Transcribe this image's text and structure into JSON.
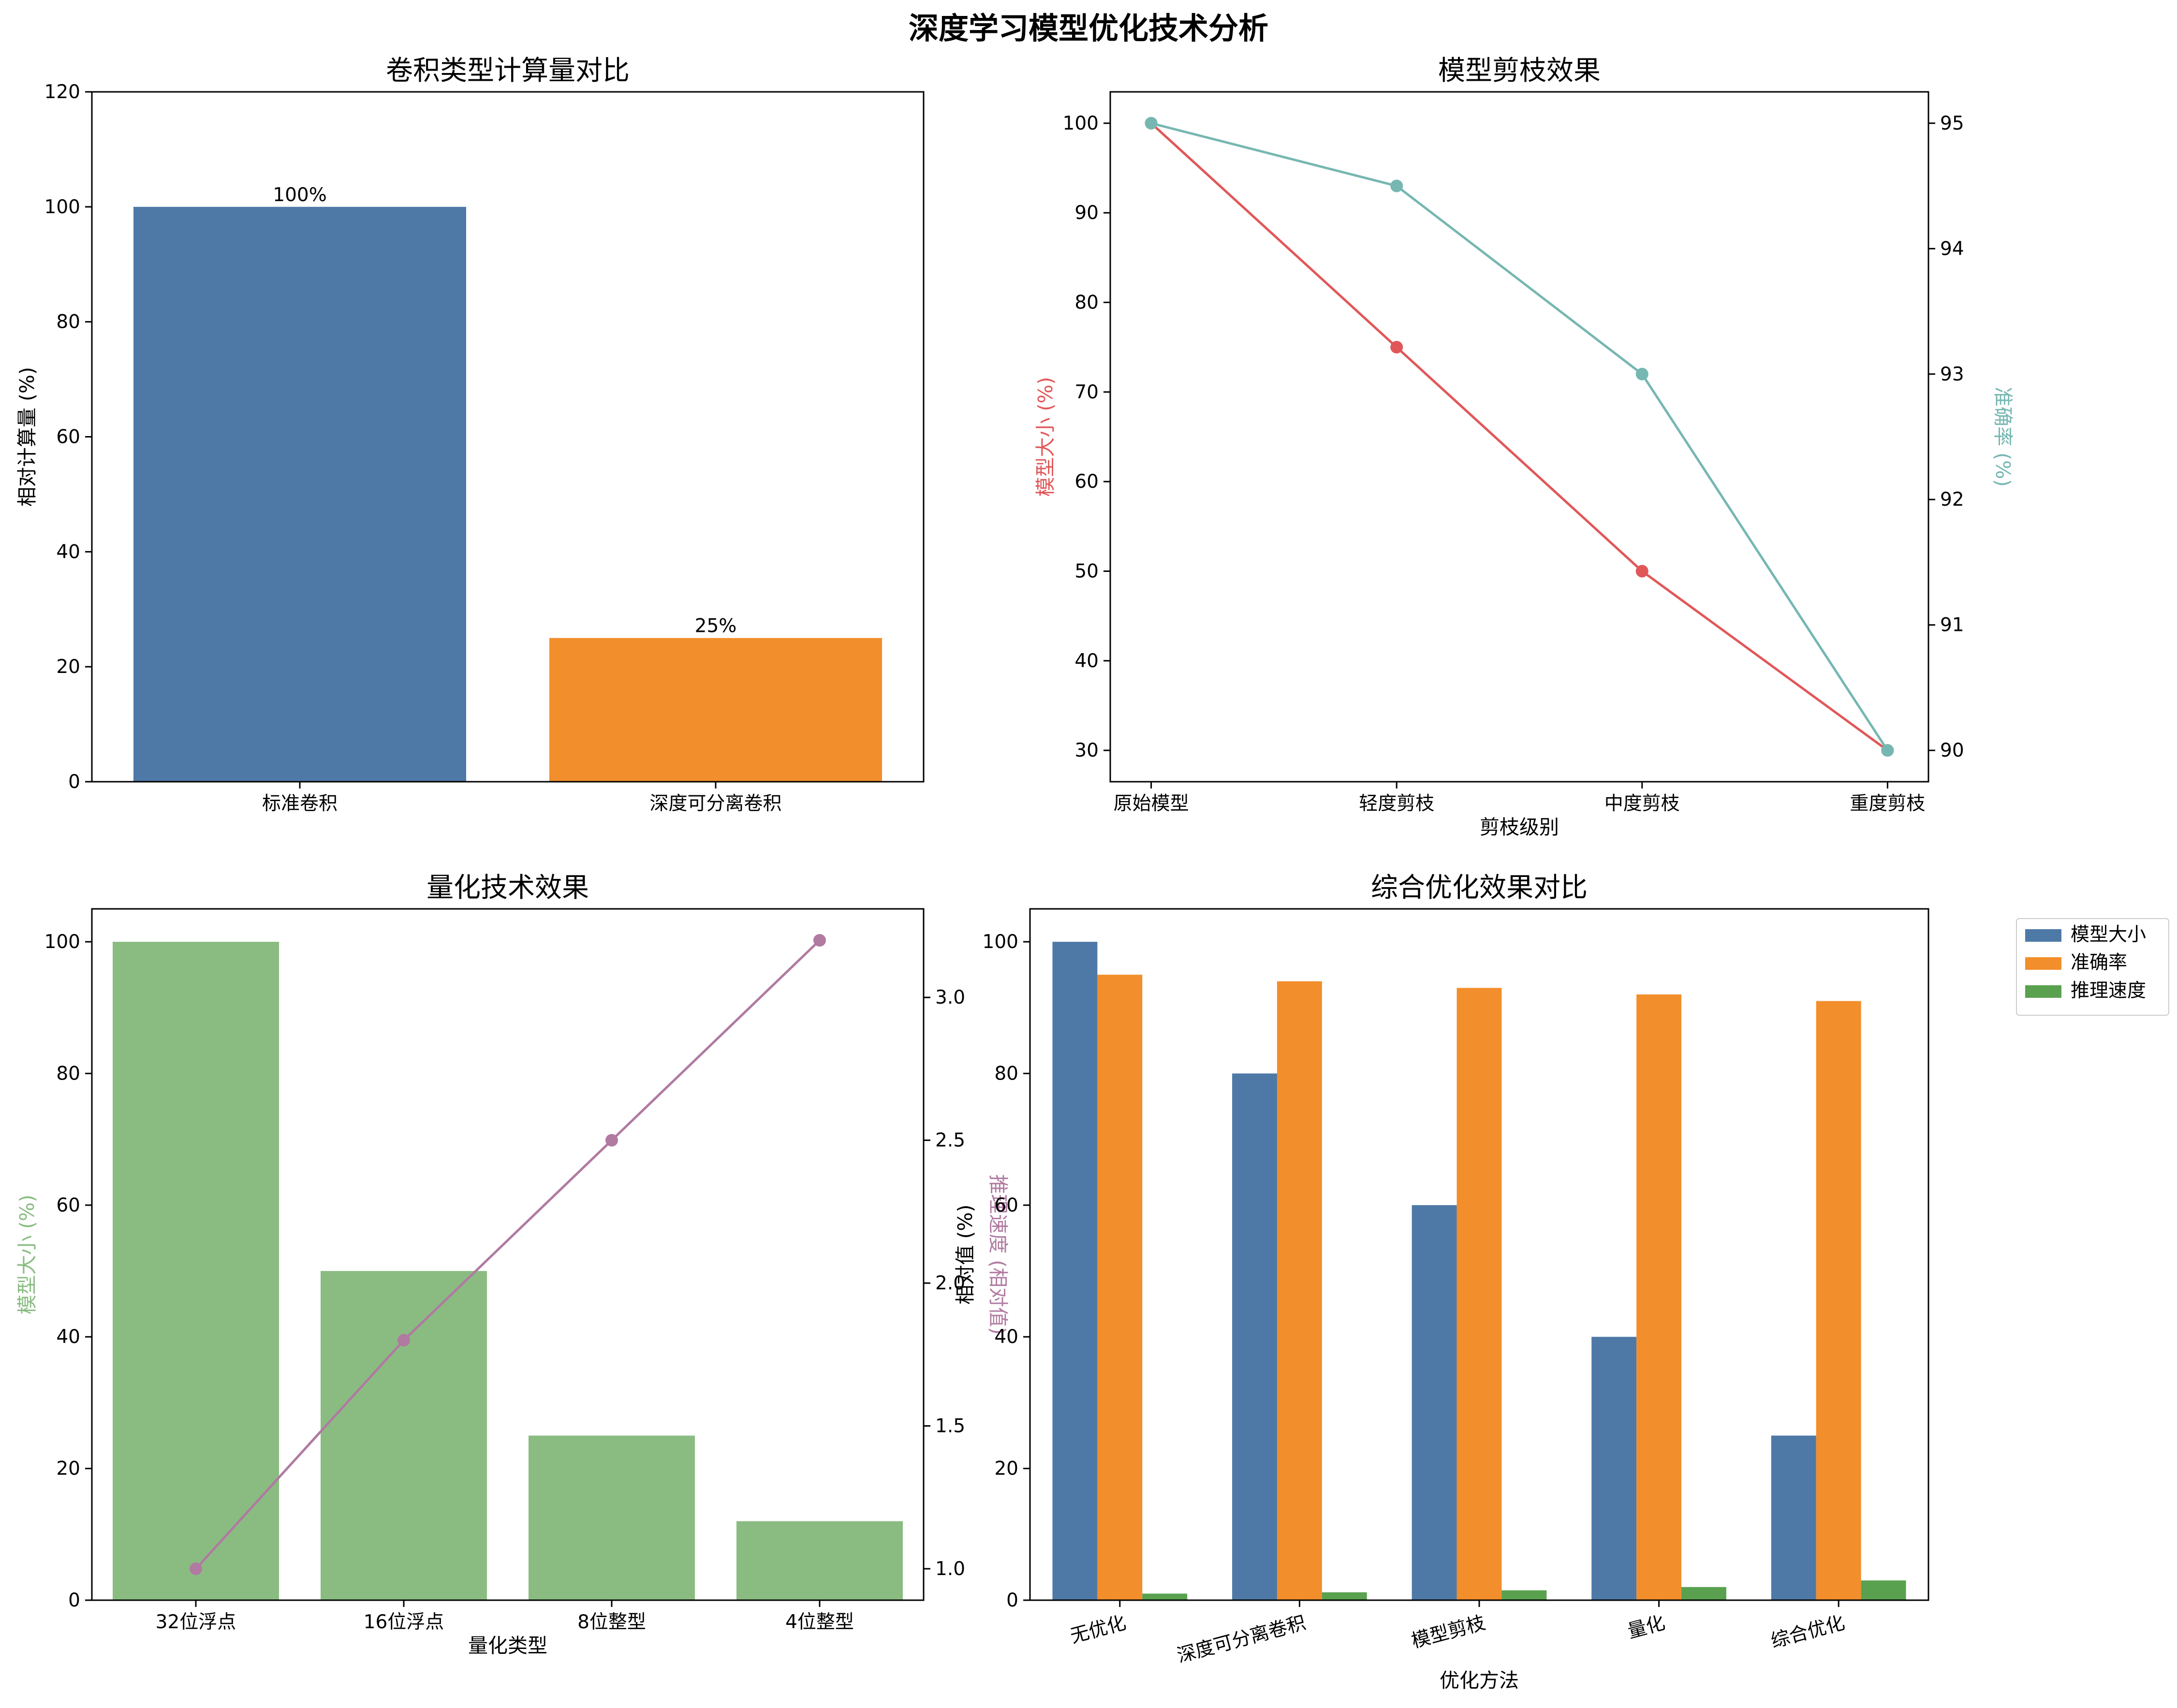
{
  "figure": {
    "suptitle": "深度学习模型优化技术分析"
  },
  "chart_data": [
    {
      "type": "bar",
      "title": "卷积类型计算量对比",
      "xlabel": "",
      "ylabel": "相对计算量 (%)",
      "ylim": [
        0,
        120
      ],
      "yticks": [
        0,
        20,
        40,
        60,
        80,
        100,
        120
      ],
      "categories": [
        "标准卷积",
        "深度可分离卷积"
      ],
      "values": [
        100,
        25
      ],
      "data_labels": [
        "100%",
        "25%"
      ],
      "colors": [
        "#4e79a7",
        "#f28e2b"
      ]
    },
    {
      "type": "line",
      "title": "模型剪枝效果",
      "xlabel": "剪枝级别",
      "ylabel": "模型大小 (%)",
      "ylabel_right": "准确率 (%)",
      "ylim": [
        26.5,
        103.5
      ],
      "yticks": [
        30,
        40,
        50,
        60,
        70,
        80,
        90,
        100
      ],
      "ylim_right": [
        89.75,
        95.25
      ],
      "yticks_right": [
        90,
        91,
        92,
        93,
        94,
        95
      ],
      "categories": [
        "原始模型",
        "轻度剪枝",
        "中度剪枝",
        "重度剪枝"
      ],
      "series": [
        {
          "name": "模型大小 (%)",
          "axis": "left",
          "values": [
            100,
            75,
            50,
            30
          ],
          "color": "#e15759"
        },
        {
          "name": "准确率 (%)",
          "axis": "right",
          "values": [
            95,
            94.5,
            93,
            90
          ],
          "color": "#76b7b2"
        }
      ]
    },
    {
      "type": "bar",
      "title": "量化技术效果",
      "xlabel": "量化类型",
      "ylabel": "模型大小 (%)",
      "ylabel_right": "推理速度 (相对值)",
      "ylim": [
        0,
        105
      ],
      "yticks": [
        0,
        20,
        40,
        60,
        80,
        100
      ],
      "ylim_right": [
        0.89,
        3.31
      ],
      "yticks_right": [
        "1.0",
        "1.5",
        "2.0",
        "2.5",
        "3.0"
      ],
      "categories": [
        "32位浮点",
        "16位浮点",
        "8位整型",
        "4位整型"
      ],
      "series": [
        {
          "name": "模型大小 (%)",
          "kind": "bar",
          "axis": "left",
          "values": [
            100,
            50,
            25,
            12
          ],
          "color": "#8abc82"
        },
        {
          "name": "推理速度 (相对值)",
          "kind": "line",
          "axis": "right",
          "values": [
            1.0,
            1.8,
            2.5,
            3.2
          ],
          "color": "#b07aa1"
        }
      ]
    },
    {
      "type": "bar",
      "title": "综合优化效果对比",
      "xlabel": "优化方法",
      "ylabel": "相对值 (%)",
      "ylim": [
        0,
        105
      ],
      "yticks": [
        0,
        20,
        40,
        60,
        80,
        100
      ],
      "categories": [
        "无优化",
        "深度可分离卷积",
        "模型剪枝",
        "量化",
        "综合优化"
      ],
      "legend_position": "outside-top-right",
      "series": [
        {
          "name": "模型大小",
          "values": [
            100,
            80,
            60,
            40,
            25
          ],
          "color": "#4e79a7"
        },
        {
          "name": "准确率",
          "values": [
            95,
            94,
            93,
            92,
            91
          ],
          "color": "#f28e2b"
        },
        {
          "name": "推理速度",
          "values": [
            1.0,
            1.2,
            1.5,
            2.0,
            3.0
          ],
          "color": "#59a14f"
        }
      ]
    }
  ]
}
